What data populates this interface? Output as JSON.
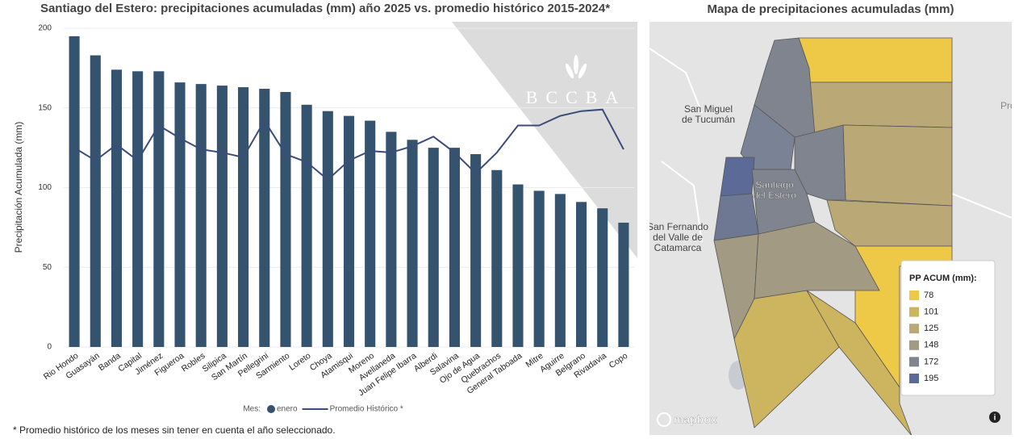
{
  "chart_data": {
    "type": "bar",
    "title": "Santiago del Estero: precipitaciones acumuladas (mm) año 2025 vs. promedio histórico 2015-2024*",
    "y_label": "Precipitación Acumulada (mm)",
    "watermark": "BCCBA",
    "legend_title": "Mes:",
    "footnote": "* Promedio histórico de los meses sin tener en cuenta el año seleccionado.",
    "categories": [
      "Rio Hondo",
      "Guasayán",
      "Banda",
      "Capital",
      "Jiménez",
      "Figueroa",
      "Robles",
      "Silipica",
      "San Martín",
      "Pellegrini",
      "Sarmiento",
      "Loreto",
      "Choya",
      "Atamisqui",
      "Moreno",
      "Avellaneda",
      "Juan Felipe Ibarra",
      "Alberdi",
      "Salavina",
      "Ojo de Agua",
      "Quebrachos",
      "General Taboada",
      "Mitre",
      "Aguirre",
      "Belgrano",
      "Rivadavia",
      "Copo"
    ],
    "series": [
      {
        "name": "enero",
        "type": "bar",
        "color": "#35536e",
        "values": [
          195,
          183,
          174,
          173,
          173,
          166,
          165,
          164,
          163,
          162,
          160,
          152,
          148,
          145,
          142,
          135,
          130,
          125,
          125,
          121,
          111,
          102,
          98,
          96,
          91,
          87,
          78
        ]
      },
      {
        "name": "Promedio Histórico *",
        "type": "line",
        "color": "#3c4d7a",
        "values": [
          125,
          117,
          127,
          117,
          139,
          131,
          124,
          122,
          119,
          142,
          121,
          116,
          105,
          117,
          123,
          122,
          126,
          132,
          122,
          109,
          122,
          139,
          139,
          145,
          148,
          149,
          124
        ]
      }
    ],
    "ylim": [
      0,
      200
    ],
    "yticks": [
      0,
      50,
      100,
      150,
      200
    ],
    "grid": true
  },
  "map": {
    "title": "Mapa de precipitaciones acumuladas (mm)",
    "legend_title": "PP ACUM (mm):",
    "legend": [
      {
        "label": 78,
        "color": "#eec948"
      },
      {
        "label": 101,
        "color": "#cdb45f"
      },
      {
        "label": 125,
        "color": "#bba877"
      },
      {
        "label": 148,
        "color": "#a29a83"
      },
      {
        "label": 172,
        "color": "#80848e"
      },
      {
        "label": 195,
        "color": "#5b6a97"
      }
    ],
    "places": [
      "San Miguel\nde Tucumán",
      "Santiago\ndel Estero",
      "San Fernando\ndel Valle de\nCatamarca",
      "Pro"
    ],
    "attribution": "mapbox"
  }
}
